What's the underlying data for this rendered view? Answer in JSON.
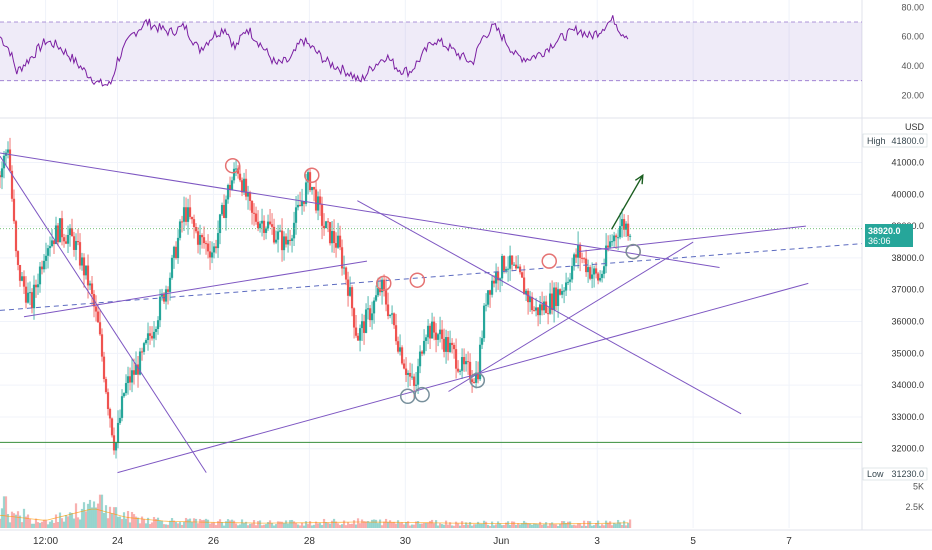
{
  "chart_data": {
    "type": "candlestick",
    "currency": "USD",
    "x_ticks": [
      "12:00",
      "24",
      "26",
      "28",
      "30",
      "Jun",
      "3",
      "5",
      "7"
    ],
    "x_tick_days": [
      22.5,
      24,
      26,
      28,
      30,
      32,
      34,
      36,
      38
    ],
    "x_range_days": [
      21.55,
      39.52
    ],
    "price_ticks": [
      32000,
      33000,
      34000,
      35000,
      36000,
      37000,
      38000,
      39000,
      40000,
      41000
    ],
    "price_tick_labels": [
      "32000.0",
      "33000.0",
      "34000.0",
      "35000.0",
      "36000.0",
      "37000.0",
      "38000.0",
      "39000.0",
      "40000.0",
      "41000.0"
    ],
    "price_range": [
      31080,
      42400
    ],
    "high_label": "High",
    "high_value": "41800.0",
    "low_label": "Low",
    "low_value": "31230.0",
    "last_price": "38920.0",
    "countdown": "36:06",
    "up_color": "#26a69a",
    "down_color": "#ef5350",
    "candle_anchors": [
      [
        21.55,
        40600
      ],
      [
        21.72,
        41600
      ],
      [
        21.9,
        37700
      ],
      [
        22.2,
        36500
      ],
      [
        22.5,
        38400
      ],
      [
        22.8,
        38900
      ],
      [
        23.1,
        38500
      ],
      [
        23.4,
        37200
      ],
      [
        23.6,
        35800
      ],
      [
        23.8,
        33500
      ],
      [
        23.95,
        32000
      ],
      [
        24.15,
        33900
      ],
      [
        24.5,
        34800
      ],
      [
        24.8,
        36100
      ],
      [
        25.1,
        37500
      ],
      [
        25.4,
        39500
      ],
      [
        25.7,
        38600
      ],
      [
        26.0,
        38200
      ],
      [
        26.3,
        40100
      ],
      [
        26.5,
        40900
      ],
      [
        26.8,
        39300
      ],
      [
        27.1,
        39100
      ],
      [
        27.5,
        38400
      ],
      [
        27.8,
        39600
      ],
      [
        28.0,
        40500
      ],
      [
        28.3,
        39000
      ],
      [
        28.6,
        38400
      ],
      [
        28.8,
        37200
      ],
      [
        29.0,
        35500
      ],
      [
        29.3,
        36400
      ],
      [
        29.5,
        37100
      ],
      [
        29.75,
        35900
      ],
      [
        30.0,
        34600
      ],
      [
        30.2,
        33800
      ],
      [
        30.4,
        35800
      ],
      [
        30.7,
        35600
      ],
      [
        31.0,
        35000
      ],
      [
        31.2,
        34500
      ],
      [
        31.5,
        34300
      ],
      [
        31.7,
        37000
      ],
      [
        31.9,
        37500
      ],
      [
        32.1,
        37900
      ],
      [
        32.4,
        37300
      ],
      [
        32.7,
        36300
      ],
      [
        33.0,
        36600
      ],
      [
        33.3,
        37100
      ],
      [
        33.6,
        38200
      ],
      [
        33.85,
        37600
      ],
      [
        34.05,
        37300
      ],
      [
        34.25,
        38400
      ],
      [
        34.5,
        39100
      ],
      [
        34.7,
        38920
      ]
    ],
    "volume_ticks": [
      "5K",
      "2.5K"
    ],
    "volume_range": [
      0,
      6000
    ],
    "rsi": {
      "levels": [
        "80.00",
        "60.00",
        "40.00",
        "20.00"
      ],
      "upper_band": 70,
      "lower_band": 30,
      "range": [
        10,
        85
      ],
      "anchors": [
        [
          21.55,
          60
        ],
        [
          21.75,
          51
        ],
        [
          21.9,
          36
        ],
        [
          22.2,
          46
        ],
        [
          22.5,
          57
        ],
        [
          22.75,
          54
        ],
        [
          23.0,
          47
        ],
        [
          23.3,
          37
        ],
        [
          23.6,
          28
        ],
        [
          23.85,
          27
        ],
        [
          24.0,
          44
        ],
        [
          24.3,
          61
        ],
        [
          24.6,
          70
        ],
        [
          24.85,
          66
        ],
        [
          25.1,
          63
        ],
        [
          25.4,
          67
        ],
        [
          25.7,
          51
        ],
        [
          26.0,
          61
        ],
        [
          26.25,
          66
        ],
        [
          26.45,
          52
        ],
        [
          26.7,
          66
        ],
        [
          27.0,
          54
        ],
        [
          27.3,
          41
        ],
        [
          27.6,
          44
        ],
        [
          27.85,
          58
        ],
        [
          28.1,
          51
        ],
        [
          28.35,
          43
        ],
        [
          28.6,
          39
        ],
        [
          28.85,
          35
        ],
        [
          29.05,
          29
        ],
        [
          29.3,
          39
        ],
        [
          29.6,
          47
        ],
        [
          29.85,
          38
        ],
        [
          30.1,
          36
        ],
        [
          30.35,
          47
        ],
        [
          30.6,
          58
        ],
        [
          30.85,
          54
        ],
        [
          31.1,
          48
        ],
        [
          31.4,
          42
        ],
        [
          31.6,
          59
        ],
        [
          31.85,
          67
        ],
        [
          32.1,
          57
        ],
        [
          32.3,
          47
        ],
        [
          32.55,
          45
        ],
        [
          32.85,
          49
        ],
        [
          33.1,
          56
        ],
        [
          33.35,
          61
        ],
        [
          33.6,
          65
        ],
        [
          33.85,
          60
        ],
        [
          34.05,
          64
        ],
        [
          34.2,
          69
        ],
        [
          34.35,
          72
        ],
        [
          34.5,
          63
        ],
        [
          34.65,
          61
        ]
      ]
    },
    "volume_base": [
      [
        21.55,
        1700
      ],
      [
        22.5,
        1000
      ],
      [
        23.5,
        2600
      ],
      [
        24.2,
        1400
      ],
      [
        25.0,
        900
      ],
      [
        26.0,
        750
      ],
      [
        27.0,
        650
      ],
      [
        28.0,
        700
      ],
      [
        29.0,
        800
      ],
      [
        30.0,
        750
      ],
      [
        31.0,
        650
      ],
      [
        32.0,
        600
      ],
      [
        33.0,
        550
      ],
      [
        34.0,
        600
      ],
      [
        34.7,
        700
      ]
    ],
    "volume_spikes": [
      [
        21.65,
        3800
      ],
      [
        22.05,
        2300
      ],
      [
        23.65,
        4000
      ],
      [
        23.95,
        2500
      ]
    ],
    "annotations": {
      "trendlines": [
        [
          [
            21.55,
            41300
          ],
          [
            36.55,
            37700
          ]
        ],
        [
          [
            21.55,
            41200
          ],
          [
            25.85,
            31250
          ]
        ],
        [
          [
            24.0,
            31250
          ],
          [
            38.4,
            37200
          ]
        ],
        [
          [
            22.05,
            36150
          ],
          [
            29.2,
            37900
          ]
        ],
        [
          [
            29.0,
            39800
          ],
          [
            37.0,
            33100
          ]
        ],
        [
          [
            30.9,
            33800
          ],
          [
            36.0,
            38500
          ]
        ],
        [
          [
            33.6,
            38200
          ],
          [
            38.35,
            39000
          ]
        ]
      ],
      "dashed_trendline": {
        "points": [
          [
            21.55,
            36350
          ],
          [
            39.52,
            38450
          ]
        ],
        "color": "#5c6bc0"
      },
      "support_line": {
        "price": 32200,
        "color": "#388e3c"
      },
      "dotted_price_line": {
        "price": 38920,
        "color": "#66bb6a"
      },
      "circles_red": [
        [
          26.4,
          40900
        ],
        [
          28.05,
          40600
        ],
        [
          29.55,
          37200
        ],
        [
          30.25,
          37300
        ],
        [
          33.0,
          37900
        ],
        [
          34.75,
          38200
        ]
      ],
      "circles_blue": [
        [
          30.05,
          33650
        ],
        [
          30.35,
          33700
        ],
        [
          31.5,
          34150
        ],
        [
          34.75,
          38200
        ]
      ],
      "arrow": {
        "from": [
          34.3,
          38900
        ],
        "to": [
          34.95,
          40600
        ],
        "color": "#1b5e20"
      }
    }
  }
}
